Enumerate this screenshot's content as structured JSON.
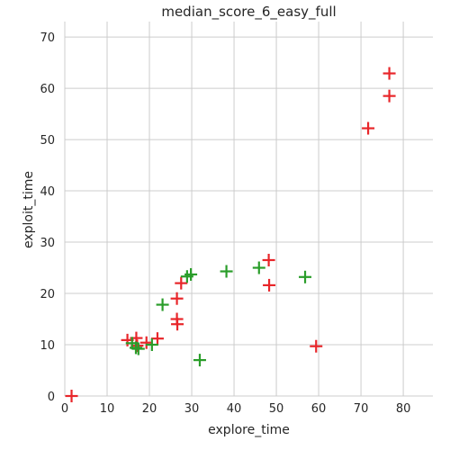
{
  "chart_data": {
    "type": "scatter",
    "title": "median_score_6_easy_full",
    "xlabel": "explore_time",
    "ylabel": "exploit_time",
    "xlim": [
      0,
      87
    ],
    "ylim": [
      0,
      73
    ],
    "xticks": [
      "0",
      "10",
      "20",
      "30",
      "40",
      "50",
      "60",
      "70",
      "80"
    ],
    "yticks": [
      "0",
      "10",
      "20",
      "30",
      "40",
      "50",
      "60",
      "70"
    ],
    "grid": true,
    "marker": "plus",
    "series": [
      {
        "color": "#e8262a",
        "points": [
          {
            "x": 1.6,
            "y": 0.0
          },
          {
            "x": 14.8,
            "y": 10.9
          },
          {
            "x": 16.9,
            "y": 11.3
          },
          {
            "x": 17.1,
            "y": 9.8
          },
          {
            "x": 19.3,
            "y": 10.4
          },
          {
            "x": 21.9,
            "y": 11.2
          },
          {
            "x": 26.5,
            "y": 15.0
          },
          {
            "x": 26.6,
            "y": 14.0
          },
          {
            "x": 26.5,
            "y": 19.0
          },
          {
            "x": 27.5,
            "y": 22.0
          },
          {
            "x": 48.2,
            "y": 26.5
          },
          {
            "x": 48.3,
            "y": 21.6
          },
          {
            "x": 59.4,
            "y": 9.7
          },
          {
            "x": 71.7,
            "y": 52.2
          },
          {
            "x": 76.7,
            "y": 62.9
          },
          {
            "x": 76.7,
            "y": 58.5
          }
        ]
      },
      {
        "color": "#2a9d2a",
        "points": [
          {
            "x": 15.9,
            "y": 10.3
          },
          {
            "x": 16.8,
            "y": 9.4
          },
          {
            "x": 17.4,
            "y": 9.2
          },
          {
            "x": 20.6,
            "y": 10.0
          },
          {
            "x": 23.1,
            "y": 17.8
          },
          {
            "x": 28.9,
            "y": 23.3
          },
          {
            "x": 29.8,
            "y": 23.7
          },
          {
            "x": 31.9,
            "y": 7.0
          },
          {
            "x": 38.2,
            "y": 24.3
          },
          {
            "x": 45.9,
            "y": 25.0
          },
          {
            "x": 56.8,
            "y": 23.2
          }
        ]
      }
    ]
  }
}
